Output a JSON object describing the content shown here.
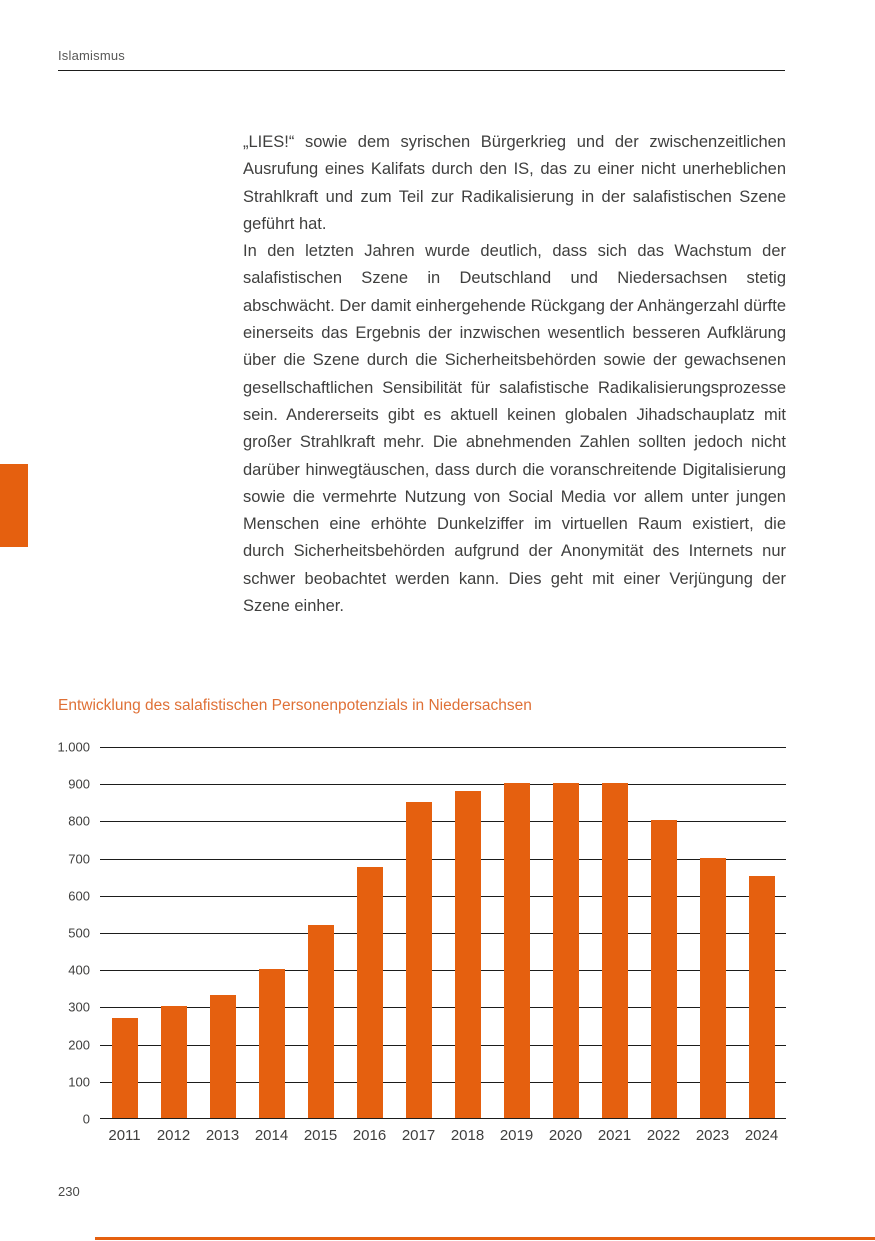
{
  "page": {
    "header": "Islamismus",
    "page_number": "230"
  },
  "article": {
    "paragraph_1": "„LIES!“ sowie dem syrischen Bürgerkrieg und der zwischenzeit­lichen Ausrufung eines Kalifats durch den IS, das zu einer nicht unerheblichen Strahlkraft und zum Teil zur Radikalisierung in der salafistischen Szene geführt hat.",
    "paragraph_2": "In den letzten Jahren wurde deutlich, dass sich das Wachstum der salafistischen Szene in Deutschland und Niedersachsen stetig abschwächt. Der damit einhergehende Rückgang der Anhängerzahl dürfte einerseits das Ergebnis der inzwischen wesentlich besseren Aufklärung über die Szene durch die Sicherheitsbehörden sowie der gewachsenen gesellschaftlichen Sensibilität für salafistische Radikalisierungsprozesse sein. Andererseits gibt es aktuell keinen globalen Jihadschauplatz mit großer Strahlkraft mehr. Die abnehmenden Zahlen sollten jedoch nicht darüber hinwegtäuschen, dass durch die voranschreitende Digitalisierung sowie die vermehrte Nutzung von Social Media vor allem unter jungen Menschen eine erhöhte Dunkelziffer im virtuellen Raum existiert, die durch Sicher­heitsbehörden aufgrund der Anonymität des Internets nur schwer beobachtet werden kann. Dies geht mit einer Verjüngung der Szene einher."
  },
  "chart_data": {
    "type": "bar",
    "title": "Entwicklung des salafistischen Personenpotenzials in Niedersachsen",
    "categories": [
      "2011",
      "2012",
      "2013",
      "2014",
      "2015",
      "2016",
      "2017",
      "2018",
      "2019",
      "2020",
      "2021",
      "2022",
      "2023",
      "2024"
    ],
    "values": [
      270,
      300,
      330,
      400,
      520,
      675,
      850,
      880,
      900,
      900,
      900,
      800,
      700,
      650
    ],
    "xlabel": "",
    "ylabel": "",
    "ylim": [
      0,
      1000
    ],
    "yticks": [
      "1.000",
      "900",
      "800",
      "700",
      "600",
      "500",
      "400",
      "300",
      "200",
      "100",
      "0"
    ],
    "grid": true,
    "legend": "none",
    "bar_color": "#e5600f"
  },
  "colors": {
    "accent": "#e5600f",
    "chart_title": "#df7036",
    "text": "#3f3f3e",
    "muted": "#575756",
    "rule": "#1d1d1b"
  }
}
